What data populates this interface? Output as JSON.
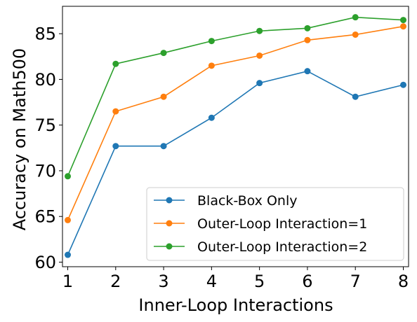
{
  "chart_data": {
    "type": "line",
    "title": "",
    "xlabel": "Inner-Loop Interactions",
    "ylabel": "Accuracy on Math500",
    "x": [
      1,
      2,
      3,
      4,
      5,
      6,
      7,
      8
    ],
    "xlim": [
      0.89,
      8.11
    ],
    "ylim": [
      59.5,
      88.0
    ],
    "xticks": [
      "1",
      "2",
      "3",
      "4",
      "5",
      "6",
      "7",
      "8"
    ],
    "yticks": [
      "60",
      "65",
      "70",
      "75",
      "80",
      "85"
    ],
    "grid": false,
    "legend_position": "lower-right",
    "series": [
      {
        "name": "Black-Box Only",
        "color": "#1f77b4",
        "values": [
          60.8,
          72.7,
          72.7,
          75.8,
          79.6,
          80.9,
          78.1,
          79.4
        ]
      },
      {
        "name": "Outer-Loop Interaction=1",
        "color": "#ff7f0e",
        "values": [
          64.6,
          76.5,
          78.1,
          81.5,
          82.6,
          84.3,
          84.9,
          85.8
        ]
      },
      {
        "name": "Outer-Loop Interaction=2",
        "color": "#2ca02c",
        "values": [
          69.4,
          81.7,
          82.9,
          84.2,
          85.3,
          85.6,
          86.8,
          86.5
        ]
      }
    ]
  }
}
